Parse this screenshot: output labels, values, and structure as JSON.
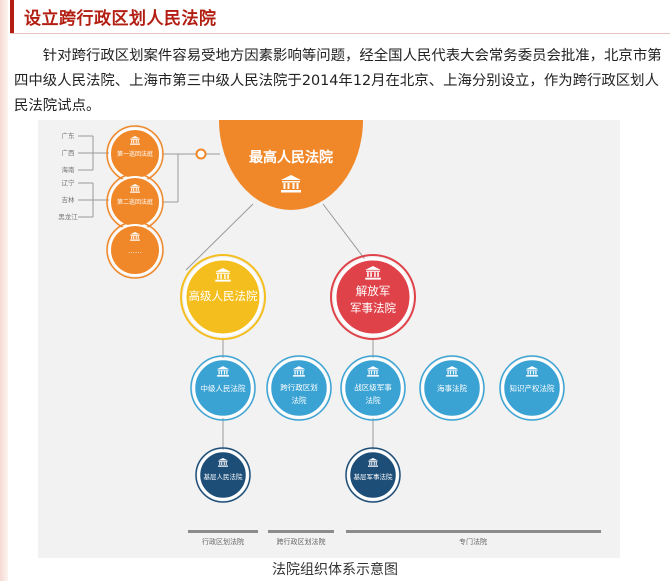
{
  "section": {
    "title": "设立跨行政区划人民法院"
  },
  "intro": "针对跨行政区划案件容易受地方因素影响等问题，经全国人民代表大会常务委员会批准，北京市第四中级人民法院、上海市第三中级人民法院于2014年12月在北京、上海分别设立，作为跨行政区划人民法院试点。",
  "diagram": {
    "supreme": "最高人民法院",
    "circuit_courts": [
      "第一巡回法庭",
      "第二巡回法庭",
      "……"
    ],
    "provinces": [
      "广东",
      "广西",
      "海南",
      "辽宁",
      "吉林",
      "黑龙江"
    ],
    "high_court": "高级人民法院",
    "pla_court_line1": "解放军",
    "pla_court_line2": "军事法院",
    "intermediate": "中级人民法院",
    "cross_region_line1": "跨行政区划",
    "cross_region_line2": "法院",
    "theater_line1": "战区级军事",
    "theater_line2": "法院",
    "maritime": "海事法院",
    "ip": "知识产权法院",
    "basic": "基层人民法院",
    "basic_military": "基层军事法院",
    "bottom_groups": [
      "行政区划法院",
      "跨行政区划法院",
      "专门法院"
    ],
    "colors": {
      "orange": "#f0882a",
      "yellow": "#f4bf1e",
      "red": "#e0424a",
      "blue": "#3aa3d4",
      "navy": "#1d4e78"
    }
  },
  "caption": "法院组织体系示意图"
}
